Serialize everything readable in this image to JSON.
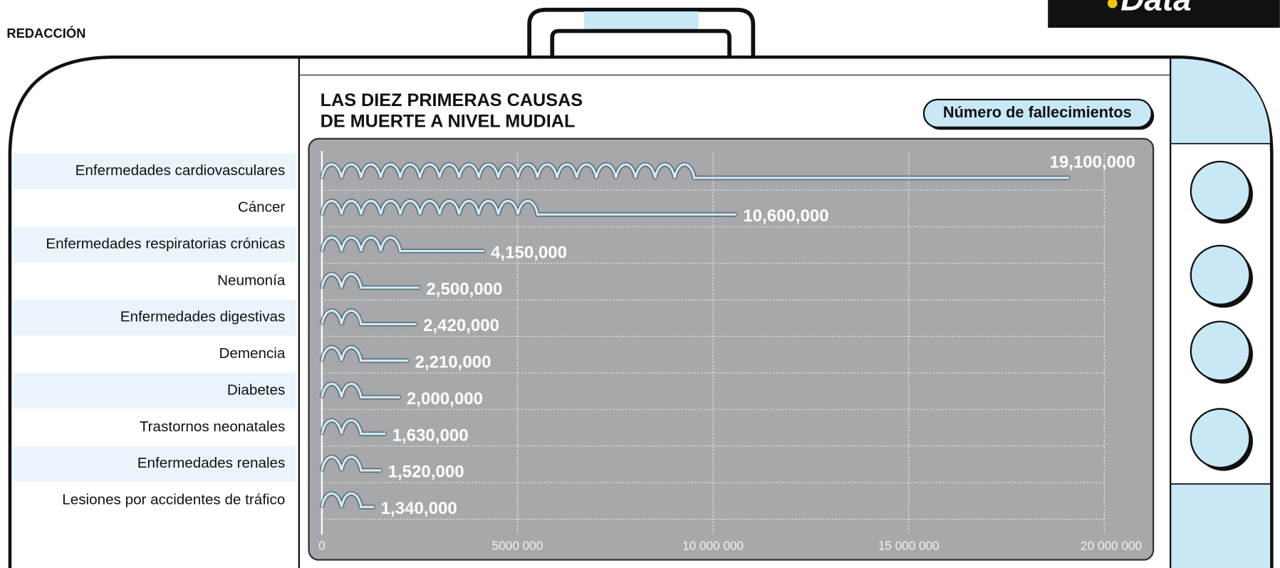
{
  "byline": "REDACCIÓN",
  "logo": "Data",
  "chart_data": {
    "type": "bar",
    "title": [
      "LAS DIEZ PRIMERAS CAUSAS",
      "DE MUERTE A NIVEL MUDIAL"
    ],
    "value_axis_label": "Número de fallecimientos",
    "categories": [
      "Enfermedades cardiovasculares",
      "Cáncer",
      "Enfermedades respiratorias crónicas",
      "Neumonía",
      "Enfermedades digestivas",
      "Demencia",
      "Diabetes",
      "Trastornos neonatales",
      "Enfermedades renales",
      "Lesiones por accidentes de tráfico"
    ],
    "values": [
      19100000,
      10600000,
      4150000,
      2500000,
      2420000,
      2210000,
      2000000,
      1630000,
      1520000,
      1340000
    ],
    "value_labels": [
      "19,100,000",
      "10,600,000",
      "4,150,000",
      "2,500,000",
      "2,420,000",
      "2,210,000",
      "2,000,000",
      "1,630,000",
      "1,520,000",
      "1,340,000"
    ],
    "color": "#cfeaf7",
    "xlim": [
      0,
      20000000
    ],
    "xticks": [
      0,
      {
        "value": 5000000,
        "label": "5000 000"
      },
      {
        "value": 10000000,
        "label": "10 000 000"
      },
      {
        "value": 15000000,
        "label": "15 000 000"
      },
      {
        "value": 20000000,
        "label": "20 000 000"
      }
    ],
    "grid": true
  }
}
